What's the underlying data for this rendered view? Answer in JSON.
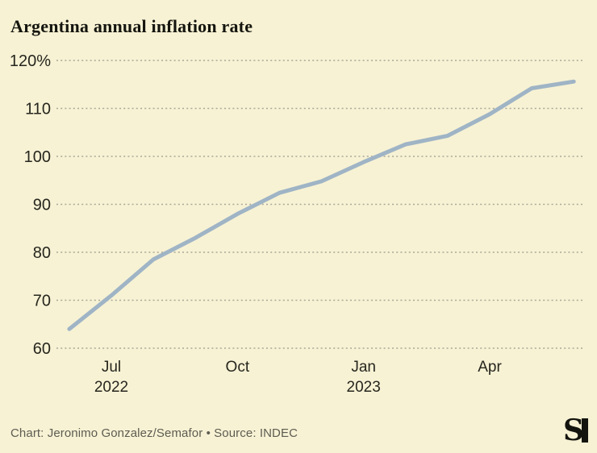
{
  "title": "Argentina annual inflation rate",
  "footer": {
    "credit_line": "Chart: Jeronimo Gonzalez/Semafor • Source: INDEC"
  },
  "logo_name": "semafor-logo",
  "colors": {
    "background": "#f7f2d4",
    "line": "#9fb4c5",
    "grid": "#a9a79a",
    "title_text": "#15150f",
    "tick_text": "#26261e",
    "footer_text": "#5d5c51",
    "logo": "#14140e"
  },
  "chart_data": {
    "type": "line",
    "title": "Argentina annual inflation rate",
    "xlabel": "",
    "ylabel": "",
    "x": [
      "Jun 2022",
      "Jul 2022",
      "Aug 2022",
      "Sep 2022",
      "Oct 2022",
      "Nov 2022",
      "Dec 2022",
      "Jan 2023",
      "Feb 2023",
      "Mar 2023",
      "Apr 2023",
      "May 2023",
      "Jun 2023"
    ],
    "series": [
      {
        "name": "Annual inflation rate (%)",
        "values": [
          64.0,
          71.0,
          78.5,
          83.0,
          88.0,
          92.4,
          94.8,
          98.8,
          102.5,
          104.3,
          108.8,
          114.2,
          115.6
        ]
      }
    ],
    "ylim": [
      60,
      120
    ],
    "grid": "horizontal-dotted",
    "legend": "none",
    "yticks": [
      {
        "value": 120,
        "label": "120%"
      },
      {
        "value": 110,
        "label": "110"
      },
      {
        "value": 100,
        "label": "100"
      },
      {
        "value": 90,
        "label": "90"
      },
      {
        "value": 80,
        "label": "80"
      },
      {
        "value": 70,
        "label": "70"
      },
      {
        "value": 60,
        "label": "60"
      }
    ],
    "xticks": [
      {
        "index": 1,
        "label": "Jul",
        "sub": "2022"
      },
      {
        "index": 4,
        "label": "Oct",
        "sub": ""
      },
      {
        "index": 7,
        "label": "Jan",
        "sub": "2023"
      },
      {
        "index": 10,
        "label": "Apr",
        "sub": ""
      }
    ]
  }
}
